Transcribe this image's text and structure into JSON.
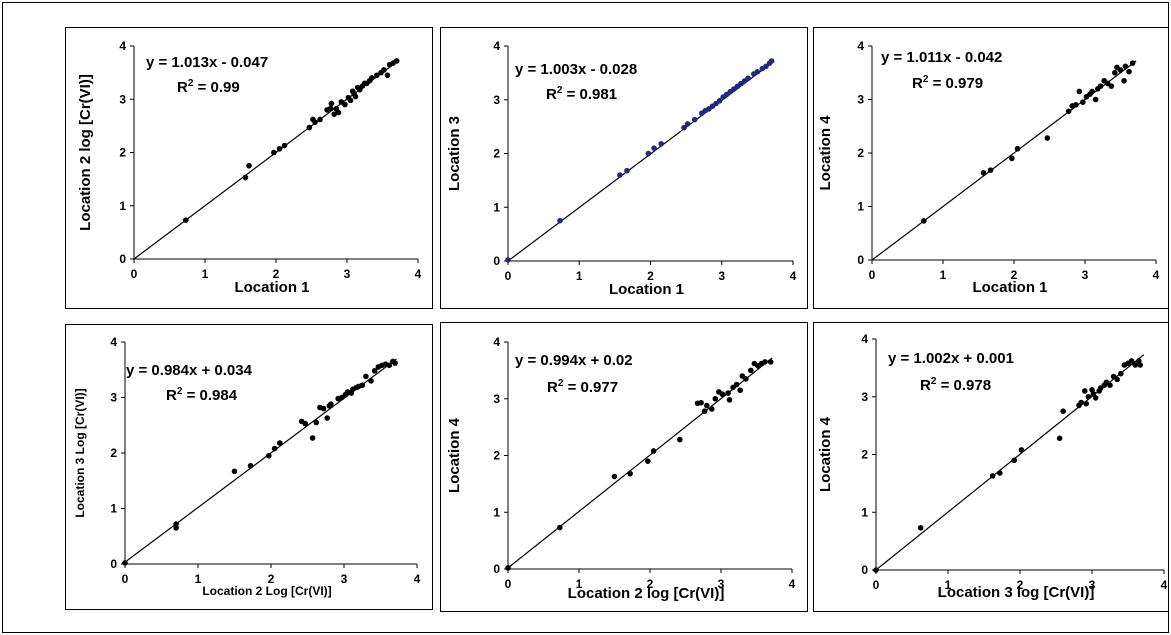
{
  "chart_data": [
    {
      "type": "scatter",
      "xlabel": "Location 1",
      "ylabel": "Location 2 log [Cr(VI)]",
      "xlim": [
        0,
        4
      ],
      "ylim": [
        0,
        4
      ],
      "xticks": [
        "0",
        "1",
        "2",
        "3",
        "4"
      ],
      "yticks": [
        "0",
        "1",
        "2",
        "3",
        "4"
      ],
      "equation": "y = 1.013x - 0.047",
      "r2_prefix": "R",
      "r2_sup": "2",
      "r2_value": " = 0.99",
      "trendline": {
        "slope": 1.013,
        "intercept": -0.047
      },
      "point_color": "#000000",
      "points": [
        [
          0.73,
          0.73
        ],
        [
          1.57,
          1.53
        ],
        [
          1.62,
          1.75
        ],
        [
          1.97,
          2.0
        ],
        [
          2.05,
          2.07
        ],
        [
          2.12,
          2.13
        ],
        [
          2.47,
          2.47
        ],
        [
          2.52,
          2.62
        ],
        [
          2.55,
          2.57
        ],
        [
          2.62,
          2.62
        ],
        [
          2.72,
          2.8
        ],
        [
          2.77,
          2.83
        ],
        [
          2.78,
          2.92
        ],
        [
          2.82,
          2.72
        ],
        [
          2.85,
          2.82
        ],
        [
          2.88,
          2.75
        ],
        [
          2.92,
          2.95
        ],
        [
          2.97,
          2.9
        ],
        [
          3.02,
          3.03
        ],
        [
          3.05,
          2.98
        ],
        [
          3.08,
          3.15
        ],
        [
          3.1,
          3.1
        ],
        [
          3.12,
          3.05
        ],
        [
          3.15,
          3.22
        ],
        [
          3.18,
          3.18
        ],
        [
          3.22,
          3.25
        ],
        [
          3.25,
          3.3
        ],
        [
          3.28,
          3.3
        ],
        [
          3.32,
          3.35
        ],
        [
          3.35,
          3.4
        ],
        [
          3.42,
          3.45
        ],
        [
          3.48,
          3.5
        ],
        [
          3.52,
          3.55
        ],
        [
          3.57,
          3.45
        ],
        [
          3.6,
          3.65
        ],
        [
          3.65,
          3.68
        ],
        [
          3.7,
          3.72
        ]
      ]
    },
    {
      "type": "scatter",
      "xlabel": "Location 1",
      "ylabel": "Location 3",
      "xlim": [
        0,
        4
      ],
      "ylim": [
        0,
        4
      ],
      "xticks": [
        "0",
        "1",
        "2",
        "3",
        "4"
      ],
      "yticks": [
        "0",
        "1",
        "2",
        "3",
        "4"
      ],
      "equation": "y = 1.003x - 0.028",
      "r2_prefix": "R",
      "r2_sup": "2",
      "r2_value": " = 0.981",
      "trendline": {
        "slope": 1.003,
        "intercept": -0.028
      },
      "point_color": "#1f2a7a",
      "points": [
        [
          0.0,
          0.02
        ],
        [
          0.73,
          0.75
        ],
        [
          1.57,
          1.6
        ],
        [
          1.67,
          1.68
        ],
        [
          1.97,
          2.0
        ],
        [
          2.05,
          2.1
        ],
        [
          2.15,
          2.18
        ],
        [
          2.47,
          2.48
        ],
        [
          2.52,
          2.55
        ],
        [
          2.62,
          2.63
        ],
        [
          2.72,
          2.75
        ],
        [
          2.77,
          2.8
        ],
        [
          2.82,
          2.83
        ],
        [
          2.87,
          2.88
        ],
        [
          2.92,
          2.93
        ],
        [
          2.97,
          2.98
        ],
        [
          3.02,
          3.05
        ],
        [
          3.07,
          3.1
        ],
        [
          3.12,
          3.15
        ],
        [
          3.17,
          3.2
        ],
        [
          3.22,
          3.25
        ],
        [
          3.27,
          3.3
        ],
        [
          3.32,
          3.35
        ],
        [
          3.37,
          3.4
        ],
        [
          3.45,
          3.48
        ],
        [
          3.5,
          3.52
        ],
        [
          3.57,
          3.58
        ],
        [
          3.62,
          3.62
        ],
        [
          3.67,
          3.68
        ],
        [
          3.7,
          3.72
        ]
      ]
    },
    {
      "type": "scatter",
      "xlabel": "Location 1",
      "ylabel": "Location 4",
      "xlim": [
        0,
        4
      ],
      "ylim": [
        0,
        4
      ],
      "xticks": [
        "0",
        "1",
        "2",
        "3",
        "4"
      ],
      "yticks": [
        "0",
        "1",
        "2",
        "3",
        "4"
      ],
      "equation": "y = 1.011x - 0.042",
      "r2_prefix": "R",
      "r2_sup": "2",
      "r2_value": " = 0.979",
      "trendline": {
        "slope": 1.011,
        "intercept": -0.042
      },
      "point_color": "#000000",
      "points": [
        [
          0.73,
          0.73
        ],
        [
          1.57,
          1.63
        ],
        [
          1.67,
          1.68
        ],
        [
          1.97,
          1.9
        ],
        [
          2.05,
          2.08
        ],
        [
          2.47,
          2.28
        ],
        [
          2.77,
          2.78
        ],
        [
          2.82,
          2.88
        ],
        [
          2.87,
          2.9
        ],
        [
          2.92,
          3.15
        ],
        [
          2.97,
          2.95
        ],
        [
          3.02,
          3.05
        ],
        [
          3.07,
          3.1
        ],
        [
          3.1,
          3.15
        ],
        [
          3.15,
          3.0
        ],
        [
          3.18,
          3.2
        ],
        [
          3.22,
          3.25
        ],
        [
          3.27,
          3.35
        ],
        [
          3.32,
          3.3
        ],
        [
          3.37,
          3.25
        ],
        [
          3.42,
          3.5
        ],
        [
          3.45,
          3.6
        ],
        [
          3.5,
          3.55
        ],
        [
          3.55,
          3.35
        ],
        [
          3.57,
          3.62
        ],
        [
          3.62,
          3.52
        ],
        [
          3.67,
          3.68
        ]
      ]
    },
    {
      "type": "scatter",
      "xlabel": "Location 2 Log [Cr(VI)]",
      "ylabel": "Location 3 Log [Cr(VI)]",
      "xlim": [
        0,
        4
      ],
      "ylim": [
        0,
        4
      ],
      "xticks": [
        "0",
        "1",
        "2",
        "3",
        "4"
      ],
      "yticks": [
        "0",
        "1",
        "2",
        "3",
        "4"
      ],
      "equation": "y = 0.984x + 0.034",
      "r2_prefix": "R",
      "r2_sup": "2",
      "r2_value": " = 0.984",
      "trendline": {
        "slope": 0.984,
        "intercept": 0.034
      },
      "point_color": "#000000",
      "points": [
        [
          0.0,
          0.02
        ],
        [
          0.7,
          0.65
        ],
        [
          0.7,
          0.72
        ],
        [
          1.5,
          1.67
        ],
        [
          1.72,
          1.77
        ],
        [
          1.97,
          1.95
        ],
        [
          2.05,
          2.08
        ],
        [
          2.12,
          2.18
        ],
        [
          2.42,
          2.57
        ],
        [
          2.47,
          2.53
        ],
        [
          2.57,
          2.27
        ],
        [
          2.62,
          2.55
        ],
        [
          2.67,
          2.82
        ],
        [
          2.72,
          2.8
        ],
        [
          2.77,
          2.63
        ],
        [
          2.8,
          2.85
        ],
        [
          2.82,
          2.88
        ],
        [
          2.92,
          2.98
        ],
        [
          2.97,
          3.0
        ],
        [
          3.02,
          3.05
        ],
        [
          3.05,
          3.1
        ],
        [
          3.1,
          3.08
        ],
        [
          3.12,
          3.15
        ],
        [
          3.17,
          3.18
        ],
        [
          3.2,
          3.2
        ],
        [
          3.25,
          3.22
        ],
        [
          3.3,
          3.38
        ],
        [
          3.37,
          3.3
        ],
        [
          3.42,
          3.48
        ],
        [
          3.47,
          3.55
        ],
        [
          3.52,
          3.58
        ],
        [
          3.57,
          3.6
        ],
        [
          3.62,
          3.58
        ],
        [
          3.67,
          3.65
        ],
        [
          3.7,
          3.62
        ]
      ]
    },
    {
      "type": "scatter",
      "xlabel": "Location 2 log [Cr(VI)]",
      "ylabel": "Location 4",
      "xlim": [
        0,
        4
      ],
      "ylim": [
        0,
        4
      ],
      "xticks": [
        "0",
        "1",
        "2",
        "3",
        "4"
      ],
      "yticks": [
        "0",
        "1",
        "2",
        "3",
        "4"
      ],
      "equation": "y = 0.994x + 0.02",
      "r2_prefix": "R",
      "r2_sup": "2",
      "r2_value": " = 0.977",
      "trendline": {
        "slope": 0.994,
        "intercept": 0.02
      },
      "point_color": "#000000",
      "points": [
        [
          0.0,
          0.02
        ],
        [
          0.73,
          0.73
        ],
        [
          1.5,
          1.63
        ],
        [
          1.72,
          1.68
        ],
        [
          1.97,
          1.9
        ],
        [
          2.05,
          2.08
        ],
        [
          2.42,
          2.28
        ],
        [
          2.67,
          2.92
        ],
        [
          2.72,
          2.93
        ],
        [
          2.77,
          2.78
        ],
        [
          2.8,
          2.88
        ],
        [
          2.87,
          2.82
        ],
        [
          2.92,
          3.0
        ],
        [
          2.97,
          3.12
        ],
        [
          3.02,
          3.08
        ],
        [
          3.1,
          3.1
        ],
        [
          3.12,
          2.98
        ],
        [
          3.17,
          3.2
        ],
        [
          3.22,
          3.25
        ],
        [
          3.27,
          3.15
        ],
        [
          3.3,
          3.4
        ],
        [
          3.35,
          3.35
        ],
        [
          3.42,
          3.5
        ],
        [
          3.47,
          3.62
        ],
        [
          3.52,
          3.58
        ],
        [
          3.57,
          3.62
        ],
        [
          3.62,
          3.65
        ],
        [
          3.7,
          3.65
        ]
      ]
    },
    {
      "type": "scatter",
      "xlabel": "Location 3 log [Cr(VI)]",
      "ylabel": "Location 4",
      "xlim": [
        0,
        4
      ],
      "ylim": [
        0,
        4
      ],
      "xticks": [
        "0",
        "1",
        "2",
        "3",
        "4"
      ],
      "yticks": [
        "0",
        "1",
        "2",
        "3",
        "4"
      ],
      "equation": "y = 1.002x + 0.001",
      "r2_prefix": "R",
      "r2_sup": "2",
      "r2_value": " = 0.978",
      "trendline": {
        "slope": 1.002,
        "intercept": 0.001
      },
      "point_color": "#000000",
      "points": [
        [
          0.0,
          0.0
        ],
        [
          0.62,
          0.73
        ],
        [
          1.62,
          1.63
        ],
        [
          1.72,
          1.68
        ],
        [
          1.92,
          1.9
        ],
        [
          2.02,
          2.08
        ],
        [
          2.55,
          2.28
        ],
        [
          2.6,
          2.75
        ],
        [
          2.82,
          2.85
        ],
        [
          2.85,
          2.9
        ],
        [
          2.9,
          3.1
        ],
        [
          2.92,
          2.88
        ],
        [
          2.95,
          3.0
        ],
        [
          3.0,
          3.12
        ],
        [
          3.02,
          3.05
        ],
        [
          3.05,
          2.98
        ],
        [
          3.1,
          3.1
        ],
        [
          3.12,
          3.15
        ],
        [
          3.17,
          3.2
        ],
        [
          3.2,
          3.25
        ],
        [
          3.25,
          3.2
        ],
        [
          3.3,
          3.35
        ],
        [
          3.35,
          3.3
        ],
        [
          3.4,
          3.4
        ],
        [
          3.45,
          3.55
        ],
        [
          3.5,
          3.58
        ],
        [
          3.55,
          3.62
        ],
        [
          3.6,
          3.55
        ],
        [
          3.65,
          3.62
        ],
        [
          3.67,
          3.55
        ]
      ]
    }
  ]
}
